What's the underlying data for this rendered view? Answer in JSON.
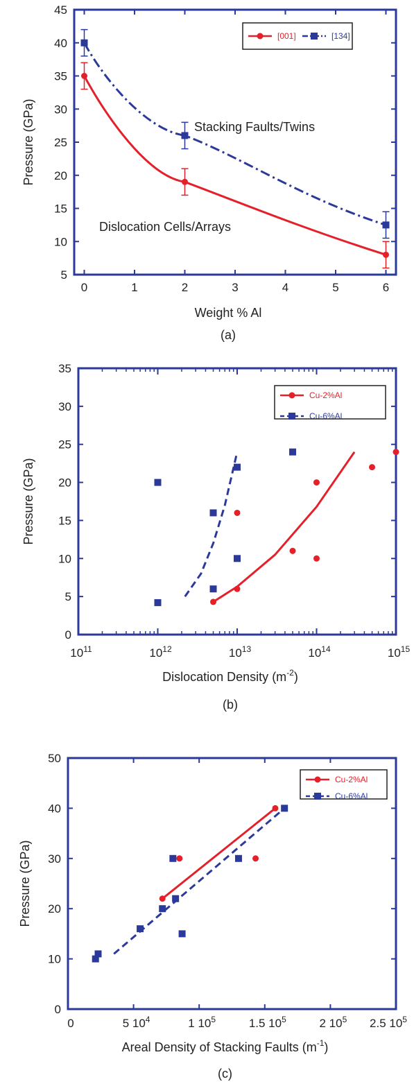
{
  "chart_data": [
    {
      "type": "line",
      "caption": "(a)",
      "xlabel": "Weight % Al",
      "ylabel": "Pressure (GPa)",
      "xlim": [
        -0.2,
        6.2
      ],
      "ylim": [
        5,
        45
      ],
      "xticks": [
        "0",
        "1",
        "2",
        "3",
        "4",
        "5",
        "6"
      ],
      "yticks": [
        "5",
        "10",
        "15",
        "20",
        "25",
        "30",
        "35",
        "40",
        "45"
      ],
      "legend_position": "top-right",
      "annotations": [
        "Stacking Faults/Twins",
        "Dislocation Cells/Arrays"
      ],
      "series": [
        {
          "name": "[001]",
          "color": "#e4202a",
          "line": "solid",
          "marker": "circle",
          "x": [
            0,
            2,
            6
          ],
          "y": [
            35,
            19,
            8
          ],
          "err": [
            2,
            2,
            2
          ]
        },
        {
          "name": "[134]",
          "color": "#2b3a9a",
          "line": "dashdot",
          "marker": "square",
          "x": [
            0,
            2,
            6
          ],
          "y": [
            40,
            26,
            12.5
          ],
          "err": [
            2,
            2,
            2
          ]
        }
      ]
    },
    {
      "type": "scatter",
      "caption": "(b)",
      "xlabel": "Dislocation Density (m",
      "xlabel_sup": "-2",
      "xlabel_end": ")",
      "ylabel": "Pressure (GPa)",
      "xscale": "log",
      "xlim": [
        100000000000.0,
        1000000000000000.0
      ],
      "ylim": [
        0,
        35
      ],
      "xticks": [
        {
          "base": "10",
          "exp": "11"
        },
        {
          "base": "10",
          "exp": "12"
        },
        {
          "base": "10",
          "exp": "13"
        },
        {
          "base": "10",
          "exp": "14"
        },
        {
          "base": "10",
          "exp": "15"
        }
      ],
      "yticks": [
        "0",
        "5",
        "10",
        "15",
        "20",
        "25",
        "30",
        "35"
      ],
      "legend_position": "top-right",
      "series": [
        {
          "name": "Cu-2%Al",
          "color": "#e4202a",
          "line": "solid",
          "marker": "circle",
          "x": [
            5000000000000.0,
            10000000000000.0,
            10000000000000.0,
            50000000000000.0,
            100000000000000.0,
            100000000000000.0,
            500000000000000.0,
            1000000000000000.0
          ],
          "y": [
            4.3,
            6,
            16,
            11,
            10,
            20,
            22,
            24
          ],
          "fit_x": [
            5000000000000.0,
            10000000000000.0,
            30000000000000.0,
            100000000000000.0,
            300000000000000.0
          ],
          "fit_y": [
            4.3,
            6.3,
            10.5,
            16.8,
            24
          ]
        },
        {
          "name": "Cu-6%Al",
          "color": "#2b3a9a",
          "line": "dashed",
          "marker": "square",
          "x": [
            1000000000000.0,
            1000000000000.0,
            5000000000000.0,
            5000000000000.0,
            10000000000000.0,
            10000000000000.0,
            50000000000000.0
          ],
          "y": [
            4.2,
            20,
            6,
            16,
            10,
            22,
            24
          ],
          "fit_x": [
            2200000000000.0,
            3500000000000.0,
            5000000000000.0,
            7000000000000.0,
            10000000000000.0
          ],
          "fit_y": [
            5,
            8,
            12,
            17,
            24
          ]
        }
      ]
    },
    {
      "type": "scatter",
      "caption": "(c)",
      "xlabel": "Areal Density of Stacking Faults (m",
      "xlabel_sup": "-1",
      "xlabel_end": ")",
      "ylabel": "Pressure (GPa)",
      "xlim": [
        0,
        250000
      ],
      "ylim": [
        0,
        50
      ],
      "xticks": [
        {
          "base": "0",
          "exp": ""
        },
        {
          "base": "5 10",
          "exp": "4"
        },
        {
          "base": "1 10",
          "exp": "5"
        },
        {
          "base": "1.5 10",
          "exp": "5"
        },
        {
          "base": "2 10",
          "exp": "5"
        },
        {
          "base": "2.5 10",
          "exp": "5"
        }
      ],
      "yticks": [
        "0",
        "10",
        "20",
        "30",
        "40",
        "50"
      ],
      "legend_position": "top-right",
      "series": [
        {
          "name": "Cu-2%Al",
          "color": "#e4202a",
          "line": "solid",
          "marker": "circle",
          "x": [
            72000,
            85000,
            143000,
            158000
          ],
          "y": [
            22,
            30,
            30,
            40
          ],
          "fit_x": [
            72000,
            158000
          ],
          "fit_y": [
            22,
            40
          ]
        },
        {
          "name": "Cu-6%Al",
          "color": "#2b3a9a",
          "line": "dashed",
          "marker": "square",
          "x": [
            21000,
            23000,
            55000,
            72000,
            80000,
            82000,
            87000,
            130000,
            165000
          ],
          "y": [
            10,
            11,
            16,
            20,
            30,
            22,
            15,
            30,
            40
          ],
          "fit_x": [
            35000,
            165000
          ],
          "fit_y": [
            11,
            40
          ]
        }
      ]
    }
  ]
}
